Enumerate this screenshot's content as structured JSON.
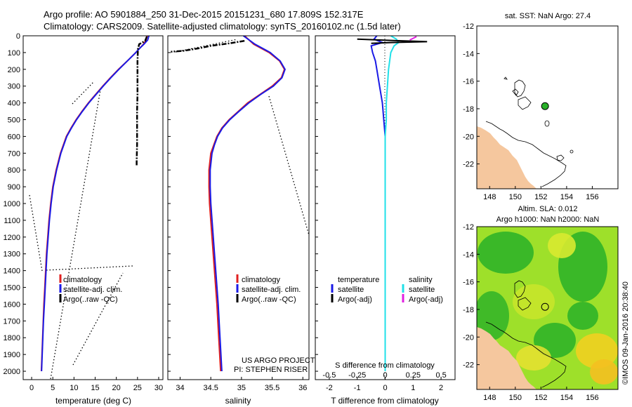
{
  "header": {
    "line1": "Argo profile: AO 5901884_250 31-Dec-2015 20151231_680 17.809S 152.317E",
    "line2": "Climatology: CARS2009. Satellite-adjusted climatology: synTS_20160102.nc (1.5d later)"
  },
  "colors": {
    "climatology": "#e02020",
    "satellite": "#1a1ae6",
    "argo": "#000000",
    "sat_salinity": "#20e0e8",
    "argo_sal_diff": "#e020e0",
    "land": "#f5c79e"
  },
  "chart_data": [
    {
      "type": "line",
      "id": "temperature",
      "xlabel": "temperature (deg C)",
      "ylabel": "",
      "xlim": [
        -2,
        31
      ],
      "ylim": [
        2050,
        0
      ],
      "xticks": [
        "0",
        "5",
        "10",
        "15",
        "20",
        "25",
        "30"
      ],
      "yticks": [
        "0",
        "100",
        "200",
        "300",
        "400",
        "500",
        "600",
        "700",
        "800",
        "900",
        "1000",
        "1100",
        "1200",
        "1300",
        "1400",
        "1500",
        "1600",
        "1700",
        "1800",
        "1900",
        "2000"
      ],
      "legend": [
        "climatology",
        "satellite-adj. clim.",
        "Argo(..raw -QC)"
      ],
      "series": [
        {
          "name": "climatology",
          "depth": [
            0,
            25,
            50,
            75,
            100,
            150,
            200,
            250,
            300,
            350,
            400,
            450,
            500,
            550,
            600,
            700,
            800,
            900,
            1000,
            1100,
            1200,
            1300,
            1400,
            1500,
            1600,
            1700,
            1800,
            1900,
            2000
          ],
          "values": [
            27.3,
            27.0,
            26.4,
            25.5,
            24.6,
            22.6,
            20.5,
            18.6,
            16.8,
            15.1,
            13.4,
            11.9,
            10.5,
            9.3,
            8.2,
            6.8,
            5.8,
            5.0,
            4.5,
            4.1,
            3.8,
            3.5,
            3.3,
            3.1,
            2.9,
            2.75,
            2.6,
            2.45,
            2.3
          ]
        },
        {
          "name": "satellite-adj. clim.",
          "depth": [
            0,
            25,
            50,
            75,
            100,
            150,
            200,
            250,
            300,
            350,
            400,
            450,
            500,
            550,
            600,
            700,
            800,
            900,
            1000,
            1100,
            1200,
            1300,
            1400,
            1500,
            1600,
            1700,
            1800,
            1900,
            2000
          ],
          "values": [
            27.7,
            27.4,
            26.5,
            25.5,
            24.6,
            22.6,
            20.6,
            18.7,
            16.9,
            15.2,
            13.5,
            12.0,
            10.6,
            9.4,
            8.3,
            6.9,
            5.9,
            5.1,
            4.6,
            4.2,
            3.9,
            3.6,
            3.4,
            3.2,
            3.0,
            2.8,
            2.65,
            2.5,
            2.35
          ]
        },
        {
          "name": "Argo(..raw -QC)",
          "depth": [
            5,
            30,
            50,
            80,
            150,
            250,
            350,
            450,
            550,
            650,
            750,
            780
          ],
          "values": [
            27.2,
            26.8,
            25.4,
            25.1,
            25.0,
            25.0,
            25.0,
            24.9,
            24.9,
            24.9,
            24.8,
            24.8
          ]
        }
      ]
    },
    {
      "type": "line",
      "id": "salinity",
      "xlabel": "salinity",
      "ylabel": "",
      "xlim": [
        33.8,
        36.1
      ],
      "ylim": [
        2050,
        0
      ],
      "xticks": [
        "34",
        "34.5",
        "35",
        "35.5",
        "36"
      ],
      "legend": [
        "climatology",
        "satellite-adj. clim.",
        "Argo(..raw -QC)"
      ],
      "series": [
        {
          "name": "climatology",
          "depth": [
            0,
            50,
            100,
            150,
            200,
            250,
            300,
            350,
            400,
            450,
            500,
            550,
            600,
            650,
            700,
            800,
            900,
            1000,
            1200,
            1400,
            1600,
            1800,
            2000
          ],
          "values": [
            35.05,
            35.2,
            35.45,
            35.62,
            35.7,
            35.65,
            35.5,
            35.3,
            35.1,
            34.95,
            34.8,
            34.68,
            34.6,
            34.55,
            34.5,
            34.47,
            34.47,
            34.48,
            34.52,
            34.56,
            34.6,
            34.63,
            34.66
          ]
        },
        {
          "name": "satellite-adj. clim.",
          "depth": [
            0,
            50,
            100,
            150,
            200,
            250,
            300,
            350,
            400,
            450,
            500,
            550,
            600,
            650,
            700,
            800,
            900,
            1000,
            1200,
            1400,
            1600,
            1800,
            2000
          ],
          "values": [
            35.03,
            35.22,
            35.47,
            35.63,
            35.71,
            35.66,
            35.52,
            35.31,
            35.12,
            34.96,
            34.81,
            34.69,
            34.61,
            34.56,
            34.52,
            34.49,
            34.49,
            34.5,
            34.54,
            34.58,
            34.62,
            34.65,
            34.68
          ]
        },
        {
          "name": "Argo(..raw -QC)",
          "depth": [
            30,
            45,
            60,
            75,
            90,
            95
          ],
          "values": [
            35.05,
            34.8,
            34.5,
            34.3,
            34.05,
            33.85
          ]
        }
      ],
      "annotations": [
        "US ARGO PROJECT",
        "PI: STEPHEN RISER"
      ]
    },
    {
      "type": "line",
      "id": "difference",
      "xlabel": "T difference from climatology",
      "top_xlabel": "S difference from climatology",
      "xlim": [
        -2.5,
        2.5
      ],
      "ylim": [
        2050,
        0
      ],
      "xticks": [
        "-2",
        "-1",
        "0",
        "1",
        "2"
      ],
      "top_xticks": [
        "-0.5",
        "-0.25",
        "0",
        "0.25",
        "0.5"
      ],
      "legend_title_left": "temperature",
      "legend_title_right": "salinity",
      "legend": [
        "satellite",
        "Argo(-adj)",
        "satellite",
        "Argo(-adj)"
      ],
      "series": [
        {
          "name": "temperature satellite",
          "depth": [
            0,
            20,
            40,
            60,
            100,
            150,
            200,
            300,
            400,
            500,
            600,
            800,
            1000,
            1200,
            1400,
            1600,
            1800,
            2000
          ],
          "values": [
            -0.3,
            -0.4,
            -0.1,
            -0.5,
            -0.45,
            -0.35,
            -0.3,
            -0.2,
            -0.1,
            -0.05,
            0.0,
            0.0,
            0.0,
            0.0,
            0.0,
            0.0,
            0.0,
            0.0
          ]
        },
        {
          "name": "salinity satellite",
          "depth": [
            0,
            20,
            40,
            60,
            100,
            150,
            200,
            300,
            400,
            500,
            600,
            800,
            1000,
            1200,
            1400,
            1600,
            1800,
            2000
          ],
          "values": [
            0.05,
            0.1,
            0.12,
            0.08,
            0.05,
            0.04,
            0.03,
            0.02,
            0.01,
            0.01,
            0.0,
            0.0,
            0.0,
            0.0,
            0.0,
            0.0,
            0.0,
            0.0
          ]
        },
        {
          "name": "temperature Argo(-adj)",
          "depth": [
            20,
            28,
            35,
            40,
            45
          ],
          "values": [
            -1.0,
            0.3,
            1.5,
            0.2,
            -0.5
          ]
        },
        {
          "name": "salinity Argo(-adj)",
          "depth": [
            5,
            15,
            25
          ],
          "values": [
            0.28,
            0.25,
            0.22
          ]
        }
      ]
    },
    {
      "type": "scatter",
      "id": "sst-map",
      "title": "sat. SST: NaN Argo: 27.4",
      "xlim": [
        147,
        158
      ],
      "ylim": [
        -23.8,
        -12
      ],
      "xticks": [
        "148",
        "150",
        "152",
        "154",
        "156"
      ],
      "yticks": [
        "-12",
        "-14",
        "-16",
        "-18",
        "-20",
        "-22"
      ],
      "points": [
        {
          "lon": 152.317,
          "lat": -17.809
        }
      ]
    },
    {
      "type": "heatmap",
      "id": "sla-map",
      "title_line1": "Altim. SLA: 0.012",
      "title_line2": "Argo h1000: NaN h2000: NaN",
      "xlim": [
        147,
        158
      ],
      "ylim": [
        -23.8,
        -12
      ],
      "xticks": [
        "148",
        "150",
        "152",
        "154",
        "156"
      ],
      "yticks": [
        "-12",
        "-14",
        "-16",
        "-18",
        "-20",
        "-22"
      ],
      "points": [
        {
          "lon": 152.317,
          "lat": -17.809
        }
      ]
    }
  ],
  "credit": "©IMOS 09-Jan-2016 20:38:40"
}
